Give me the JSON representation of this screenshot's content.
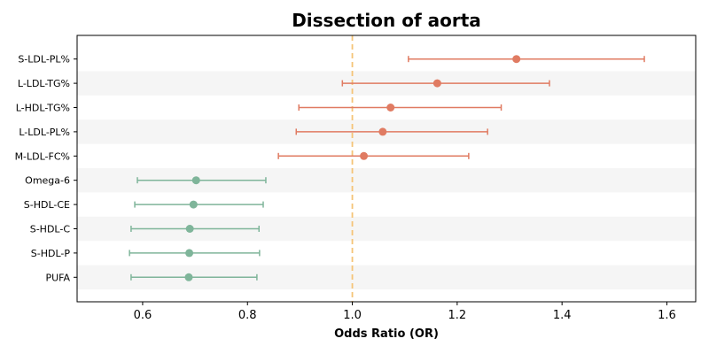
{
  "chart_data": {
    "type": "forest",
    "title": "Dissection of aorta",
    "xlabel": "Odds Ratio (OR)",
    "ylabel": "",
    "xlim": [
      0.475,
      1.655
    ],
    "xticks": [
      0.6,
      0.8,
      1.0,
      1.2,
      1.4,
      1.6
    ],
    "xtick_labels": [
      "0.6",
      "0.8",
      "1.0",
      "1.2",
      "1.4",
      "1.6"
    ],
    "reference_line": 1.0,
    "grid": false,
    "alternating_row_shading": true,
    "colors": {
      "risk": "#e07b62",
      "protective": "#7fb59a",
      "reference": "#f5c477",
      "band": "#f5f5f5"
    },
    "rows": [
      {
        "label": "S-LDL-PL%",
        "or": 1.313,
        "lower": 1.107,
        "upper": 1.557,
        "group": "risk"
      },
      {
        "label": "L-LDL-TG%",
        "or": 1.162,
        "lower": 0.981,
        "upper": 1.376,
        "group": "risk"
      },
      {
        "label": "L-HDL-TG%",
        "or": 1.073,
        "lower": 0.898,
        "upper": 1.284,
        "group": "risk"
      },
      {
        "label": "L-LDL-PL%",
        "or": 1.058,
        "lower": 0.893,
        "upper": 1.258,
        "group": "risk"
      },
      {
        "label": "M-LDL-FC%",
        "or": 1.022,
        "lower": 0.859,
        "upper": 1.222,
        "group": "risk"
      },
      {
        "label": "Omega-6",
        "or": 0.702,
        "lower": 0.59,
        "upper": 0.835,
        "group": "protective"
      },
      {
        "label": "S-HDL-CE",
        "or": 0.697,
        "lower": 0.585,
        "upper": 0.83,
        "group": "protective"
      },
      {
        "label": "S-HDL-C",
        "or": 0.69,
        "lower": 0.578,
        "upper": 0.822,
        "group": "protective"
      },
      {
        "label": "S-HDL-P",
        "or": 0.689,
        "lower": 0.575,
        "upper": 0.823,
        "group": "protective"
      },
      {
        "label": "PUFA",
        "or": 0.688,
        "lower": 0.578,
        "upper": 0.818,
        "group": "protective"
      }
    ]
  }
}
